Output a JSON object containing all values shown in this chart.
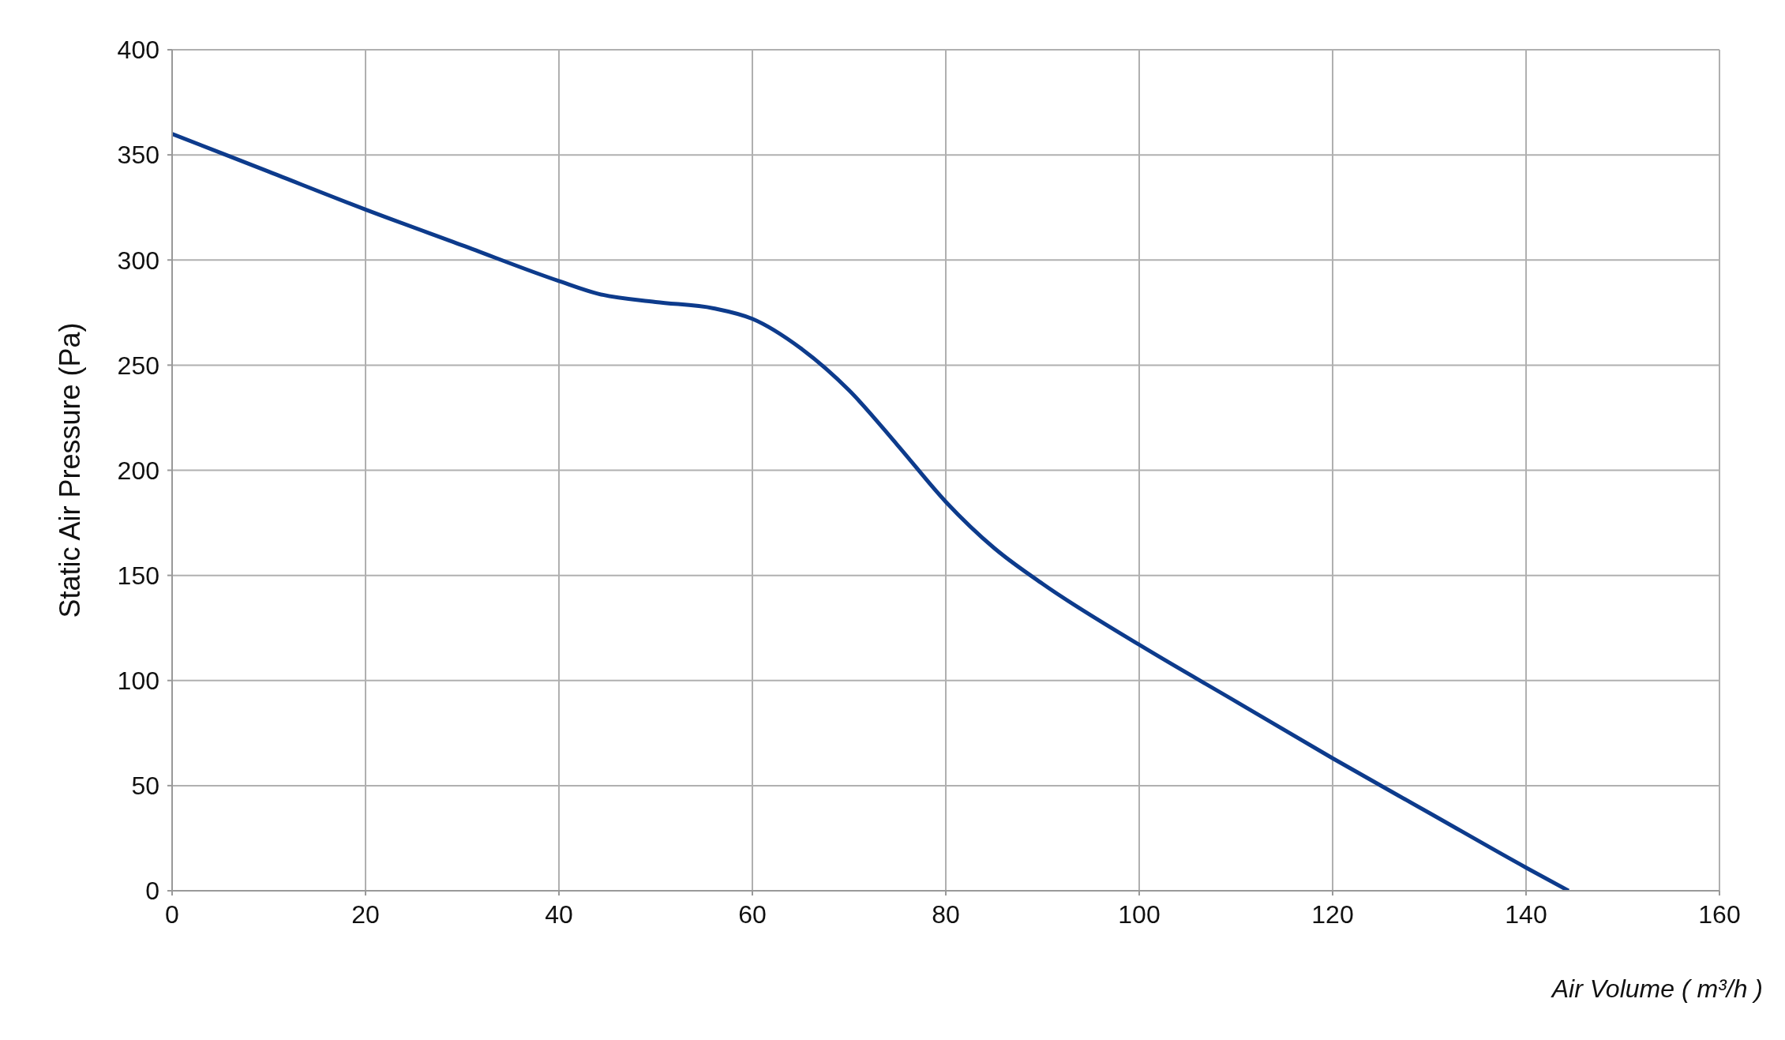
{
  "chart_data": {
    "type": "line",
    "xlabel": "Air Volume ( m³/h )",
    "ylabel": "Static Air Pressure  (Pa)",
    "series": [
      {
        "color": "#0d3b8c",
        "x": [
          0,
          10,
          20,
          30,
          40,
          44,
          50,
          56,
          60,
          65,
          70,
          75,
          80,
          85,
          90,
          100,
          110,
          120,
          130,
          140,
          144.4
        ],
        "values": [
          360,
          342,
          324,
          307,
          290,
          284,
          280,
          277,
          272,
          258,
          238,
          212,
          185,
          163,
          146,
          117,
          90,
          63,
          37,
          11,
          0
        ]
      }
    ],
    "xlim": [
      0,
      160
    ],
    "xticks": [
      0,
      20,
      40,
      60,
      80,
      100,
      120,
      140,
      160
    ],
    "ylim": [
      0,
      400
    ],
    "yticks": [
      0,
      50,
      100,
      150,
      200,
      250,
      300,
      350,
      400
    ],
    "grid": true,
    "marker": "none",
    "line_style": "solid"
  }
}
